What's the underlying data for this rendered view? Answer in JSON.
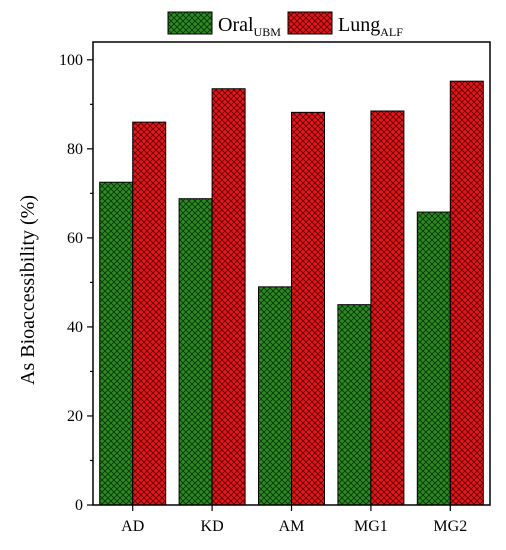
{
  "chart_data": {
    "type": "bar",
    "categories": [
      "AD",
      "KD",
      "AM",
      "MG1",
      "MG2"
    ],
    "series": [
      {
        "name": "Oral",
        "name_subscript": "UBM",
        "color": "#2e8b22",
        "values": [
          72.5,
          68.8,
          49.0,
          45.0,
          65.8
        ]
      },
      {
        "name": "Lung",
        "name_subscript": "ALF",
        "color": "#e8161b",
        "values": [
          86.0,
          93.5,
          88.2,
          88.5,
          95.2
        ]
      }
    ],
    "ylabel": "As Bioaccessibility (%)",
    "xlabel": "",
    "ylim": [
      0,
      104
    ],
    "yticks": [
      0,
      20,
      40,
      60,
      80,
      100
    ],
    "legend_position": "top",
    "grid": false,
    "pattern": "crosshatch"
  }
}
